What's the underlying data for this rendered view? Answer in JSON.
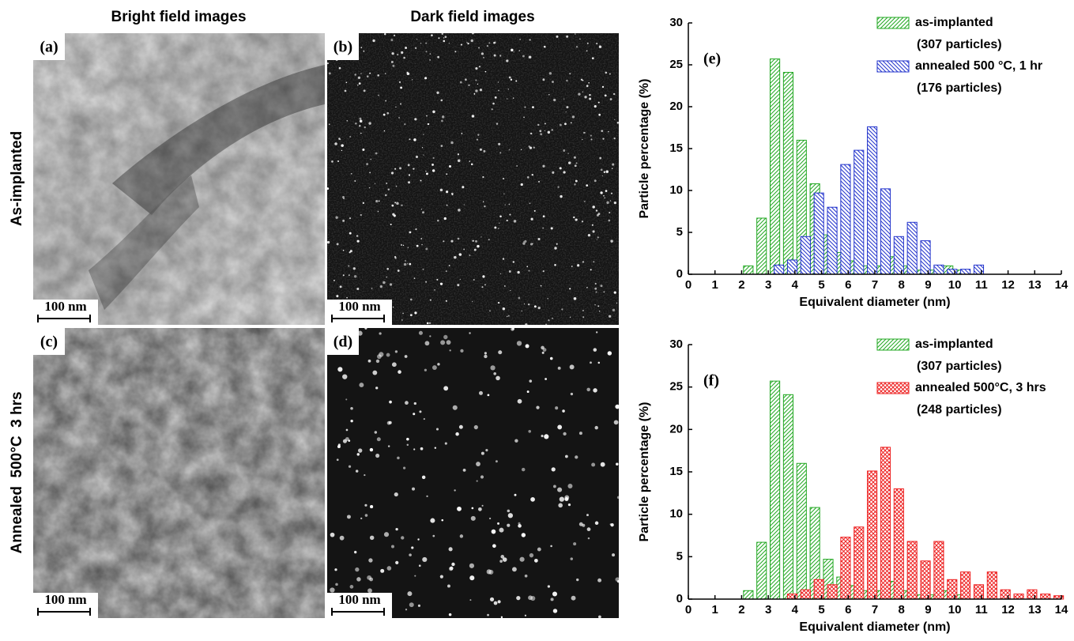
{
  "figure": {
    "column_headers": [
      "Bright field images",
      "Dark field images"
    ],
    "row_labels": [
      "As-implanted",
      "Annealed  500°C  3 hrs"
    ],
    "panels": [
      {
        "label": "(a)",
        "scale_bar": "100 nm",
        "kind": "bright"
      },
      {
        "label": "(b)",
        "scale_bar": "100 nm",
        "kind": "dark"
      },
      {
        "label": "(c)",
        "scale_bar": "100 nm",
        "kind": "bright"
      },
      {
        "label": "(d)",
        "scale_bar": "100 nm",
        "kind": "dark"
      }
    ]
  },
  "chart_data": [
    {
      "type": "bar",
      "panel_label": "(e)",
      "x_label": "Equivalent diameter (nm)",
      "y_label": "Particle percentage (%)",
      "xlim": [
        0,
        14
      ],
      "ylim": [
        0,
        30
      ],
      "xticks": [
        0,
        1,
        2,
        3,
        4,
        5,
        6,
        7,
        8,
        9,
        10,
        11,
        12,
        13,
        14
      ],
      "yticks": [
        0,
        5,
        10,
        15,
        20,
        25,
        30
      ],
      "legend": "upper right",
      "series": [
        {
          "name": "as-implanted",
          "note": "(307 particles)",
          "color": "#22a822",
          "hatch": "/",
          "x": [
            2.25,
            2.75,
            3.25,
            3.75,
            4.25,
            4.75,
            5.25,
            5.75,
            6.25,
            6.75,
            7.25,
            7.75,
            8.25,
            8.75,
            9.25,
            9.75,
            10.25
          ],
          "values": [
            1.0,
            6.7,
            25.7,
            24.1,
            16.0,
            10.8,
            4.7,
            2.6,
            1.6,
            1.0,
            1.0,
            2.1,
            1.0,
            0.5,
            0.5,
            1.0,
            0.5
          ]
        },
        {
          "name": "annealed 500 °C, 1 hr",
          "note": "(176 particles)",
          "color": "#2233cc",
          "hatch": "\\",
          "x": [
            3.4,
            3.9,
            4.4,
            4.9,
            5.4,
            5.9,
            6.4,
            6.9,
            7.4,
            7.9,
            8.4,
            8.9,
            9.4,
            9.9,
            10.4,
            10.9
          ],
          "values": [
            1.1,
            1.7,
            4.5,
            9.7,
            8.0,
            13.1,
            14.8,
            17.6,
            10.2,
            4.5,
            6.2,
            4.0,
            1.1,
            0.6,
            0.6,
            1.1
          ]
        }
      ]
    },
    {
      "type": "bar",
      "panel_label": "(f)",
      "x_label": "Equivalent diameter (nm)",
      "y_label": "Particle percentage (%)",
      "xlim": [
        0,
        14
      ],
      "ylim": [
        0,
        30
      ],
      "xticks": [
        0,
        1,
        2,
        3,
        4,
        5,
        6,
        7,
        8,
        9,
        10,
        11,
        12,
        13,
        14
      ],
      "yticks": [
        0,
        5,
        10,
        15,
        20,
        25,
        30
      ],
      "legend": "upper right",
      "series": [
        {
          "name": "as-implanted",
          "note": "(307 particles)",
          "color": "#22a822",
          "hatch": "/",
          "x": [
            2.25,
            2.75,
            3.25,
            3.75,
            4.25,
            4.75,
            5.25,
            5.75,
            6.25,
            6.75,
            7.25,
            7.75,
            8.25,
            8.75,
            9.25,
            9.75,
            10.25
          ],
          "values": [
            1.0,
            6.7,
            25.7,
            24.1,
            16.0,
            10.8,
            4.7,
            2.6,
            1.6,
            1.0,
            1.0,
            2.1,
            1.0,
            0.5,
            0.5,
            1.0,
            0.5
          ]
        },
        {
          "name": "annealed 500°C, 3 hrs",
          "note": "(248 particles)",
          "color": "#ee2222",
          "hatch": "x",
          "x": [
            3.9,
            4.4,
            4.9,
            5.4,
            5.9,
            6.4,
            6.9,
            7.4,
            7.9,
            8.4,
            8.9,
            9.4,
            9.9,
            10.4,
            10.9,
            11.4,
            11.9,
            12.4,
            12.9,
            13.4,
            13.9
          ],
          "values": [
            0.6,
            1.1,
            2.3,
            1.7,
            7.3,
            8.5,
            15.1,
            17.9,
            13.0,
            6.8,
            4.5,
            6.8,
            2.3,
            3.2,
            1.7,
            3.2,
            1.1,
            0.6,
            1.1,
            0.6,
            0.4
          ]
        }
      ]
    }
  ]
}
